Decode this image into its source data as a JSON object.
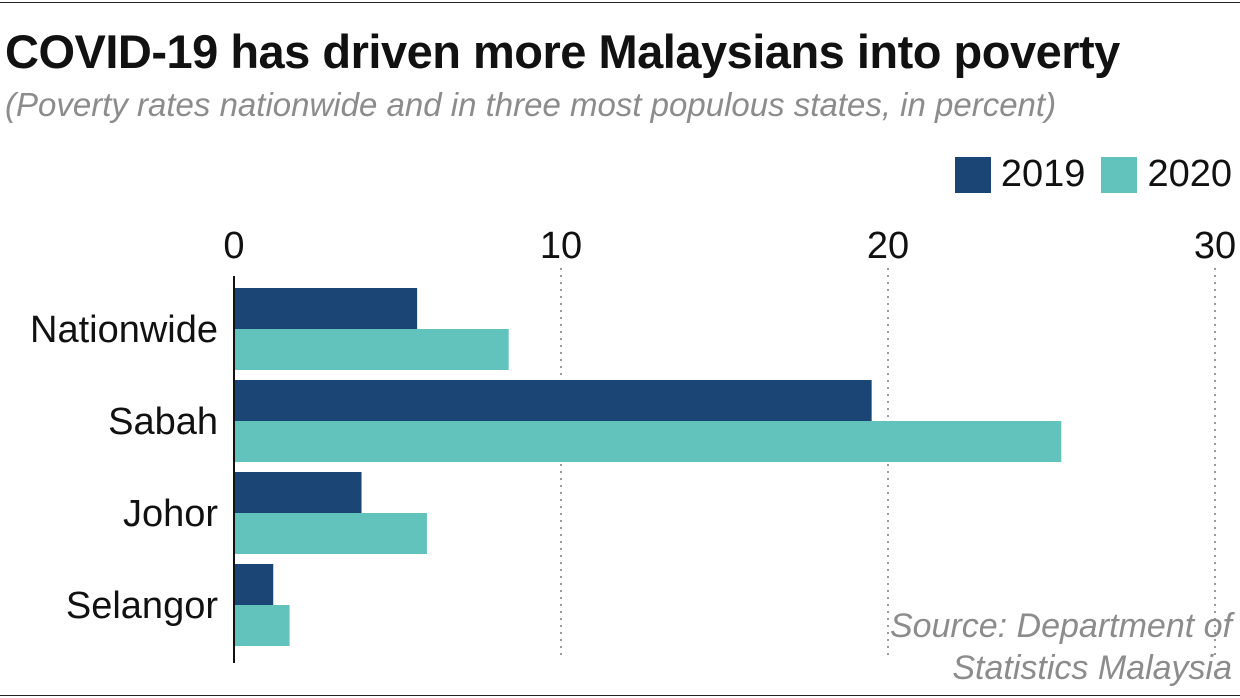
{
  "title": "COVID-19 has driven more Malaysians into poverty",
  "subtitle": "(Poverty rates nationwide and in three most populous states, in percent)",
  "source_line1": "Source: Department of",
  "source_line2": "Statistics Malaysia",
  "colors": {
    "series_2019": "#1a4575",
    "series_2020": "#62c3bd",
    "grid": "#9a9a9a",
    "axis": "#111111"
  },
  "chart_data": {
    "type": "bar",
    "orientation": "horizontal",
    "categories": [
      "Nationwide",
      "Sabah",
      "Johor",
      "Selangor"
    ],
    "series": [
      {
        "name": "2019",
        "values": [
          5.6,
          19.5,
          3.9,
          1.2
        ]
      },
      {
        "name": "2020",
        "values": [
          8.4,
          25.3,
          5.9,
          1.7
        ]
      }
    ],
    "xlim": [
      0,
      30
    ],
    "xticks": [
      0,
      10,
      20,
      30
    ],
    "grid": true,
    "legend_position": "top-right"
  }
}
